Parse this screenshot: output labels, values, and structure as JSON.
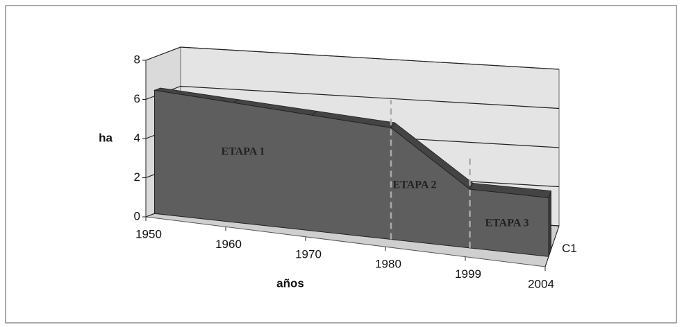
{
  "chart_data": {
    "type": "area3d",
    "categories": [
      "1950",
      "1960",
      "1970",
      "1980",
      "1999",
      "2004"
    ],
    "series": [
      {
        "name": "C1",
        "color": "#5e5e5e",
        "values": [
          6.3,
          6.1,
          5.9,
          5.7,
          3.0,
          3.0
        ]
      }
    ],
    "ylim": [
      0,
      8
    ],
    "yticks": [
      0,
      2,
      4,
      6,
      8
    ],
    "grid": true,
    "y_label": "ha",
    "x_label": "años",
    "annotations": [
      "ETAPA 1",
      "ETAPA 2",
      "ETAPA 3"
    ]
  }
}
